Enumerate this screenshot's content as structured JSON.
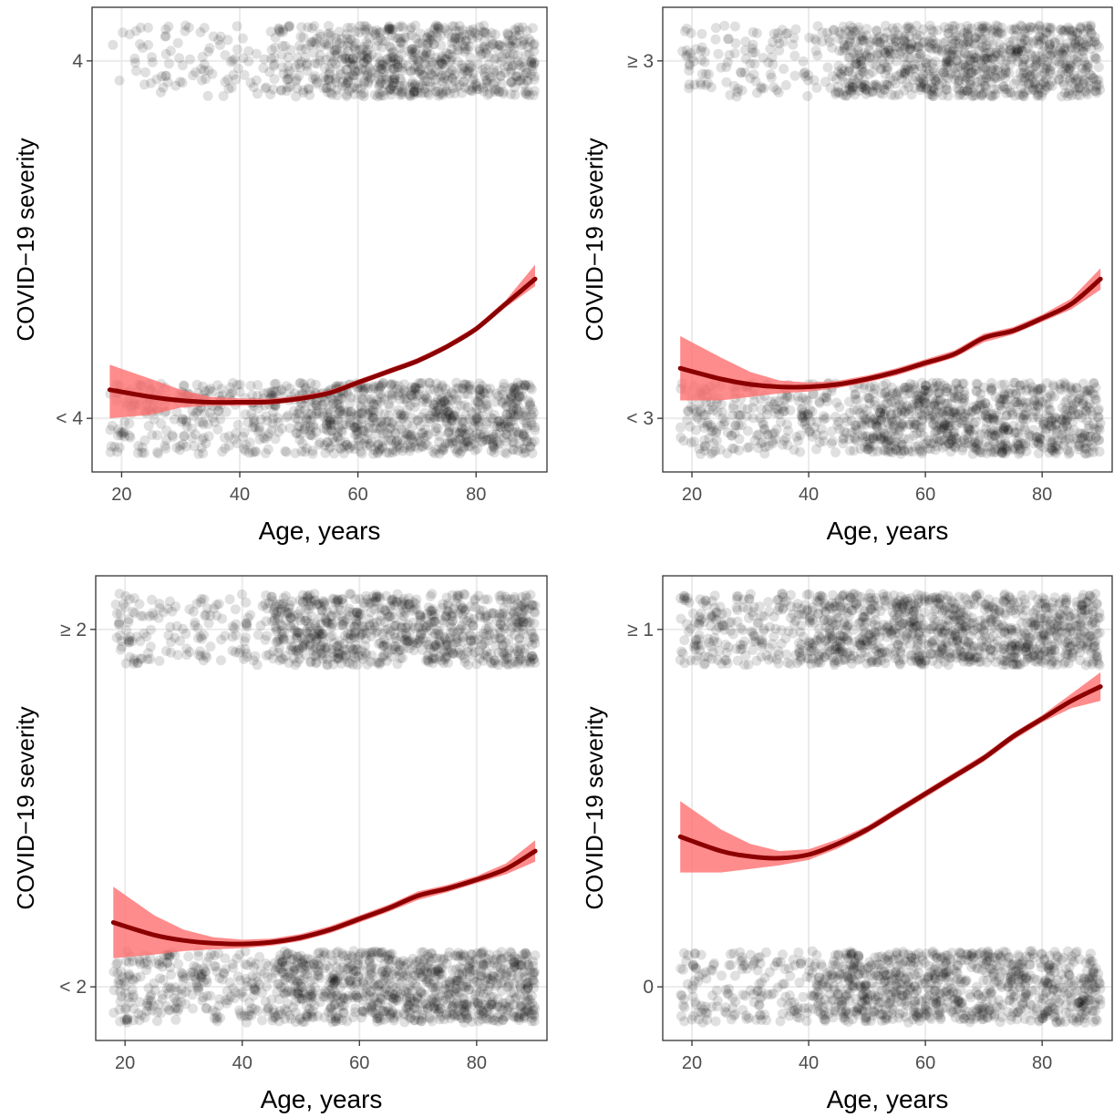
{
  "chart_data": [
    {
      "type": "scatter",
      "panel": "top-left",
      "xlabel": "Age, years",
      "ylabel": "COVID−19 severity",
      "xlim": [
        15,
        92
      ],
      "ylim": [
        -0.15,
        1.15
      ],
      "xticks": [
        20,
        40,
        60,
        80
      ],
      "yticks": [
        {
          "value": 0,
          "label": "< 4"
        },
        {
          "value": 1,
          "label": "4"
        }
      ],
      "grid": true,
      "points": {
        "color": "#000000",
        "opacity": 0.12,
        "jitter": 0.1,
        "density_at_1": "sparse below age 45, dense above",
        "density_at_0": "dense across all ages"
      },
      "fit": {
        "name": "smooth",
        "color": "#8B0000",
        "band_color": "#FF6F6F",
        "x": [
          18,
          25,
          30,
          35,
          40,
          45,
          50,
          55,
          60,
          65,
          70,
          75,
          80,
          85,
          90
        ],
        "y": [
          0.08,
          0.06,
          0.05,
          0.045,
          0.045,
          0.046,
          0.055,
          0.07,
          0.1,
          0.13,
          0.16,
          0.2,
          0.25,
          0.32,
          0.39
        ],
        "lower": [
          0.0,
          0.01,
          0.03,
          0.035,
          0.035,
          0.038,
          0.047,
          0.063,
          0.092,
          0.122,
          0.152,
          0.192,
          0.242,
          0.31,
          0.37
        ],
        "upper": [
          0.15,
          0.11,
          0.08,
          0.06,
          0.056,
          0.055,
          0.063,
          0.078,
          0.108,
          0.138,
          0.168,
          0.208,
          0.258,
          0.33,
          0.43
        ]
      }
    },
    {
      "type": "scatter",
      "panel": "top-right",
      "xlabel": "Age, years",
      "ylabel": "COVID−19 severity",
      "xlim": [
        15,
        92
      ],
      "ylim": [
        -0.15,
        1.15
      ],
      "xticks": [
        20,
        40,
        60,
        80
      ],
      "yticks": [
        {
          "value": 0,
          "label": "< 3"
        },
        {
          "value": 1,
          "label": "≥ 3"
        }
      ],
      "grid": true,
      "points": {
        "color": "#000000",
        "opacity": 0.12,
        "jitter": 0.1,
        "density_at_1": "moderate, denser above age 45",
        "density_at_0": "dense across all ages"
      },
      "fit": {
        "name": "smooth",
        "color": "#8B0000",
        "band_color": "#FF6F6F",
        "x": [
          18,
          25,
          30,
          35,
          40,
          45,
          50,
          55,
          60,
          65,
          70,
          75,
          80,
          85,
          90
        ],
        "y": [
          0.14,
          0.11,
          0.095,
          0.088,
          0.088,
          0.095,
          0.11,
          0.13,
          0.155,
          0.18,
          0.225,
          0.245,
          0.28,
          0.32,
          0.39
        ],
        "lower": [
          0.05,
          0.05,
          0.06,
          0.07,
          0.075,
          0.085,
          0.1,
          0.12,
          0.145,
          0.17,
          0.213,
          0.235,
          0.27,
          0.305,
          0.36
        ],
        "upper": [
          0.23,
          0.17,
          0.13,
          0.106,
          0.1,
          0.105,
          0.12,
          0.14,
          0.165,
          0.19,
          0.237,
          0.255,
          0.29,
          0.335,
          0.42
        ]
      }
    },
    {
      "type": "scatter",
      "panel": "bottom-left",
      "xlabel": "Age, years",
      "ylabel": "COVID−19 severity",
      "xlim": [
        15,
        92
      ],
      "ylim": [
        -0.15,
        1.15
      ],
      "xticks": [
        20,
        40,
        60,
        80
      ],
      "yticks": [
        {
          "value": 0,
          "label": "< 2"
        },
        {
          "value": 1,
          "label": "≥ 2"
        }
      ],
      "grid": true,
      "points": {
        "color": "#000000",
        "opacity": 0.12,
        "jitter": 0.1,
        "density_at_1": "moderate, denser above age 45",
        "density_at_0": "dense across all ages"
      },
      "fit": {
        "name": "smooth",
        "color": "#8B0000",
        "band_color": "#FF6F6F",
        "x": [
          18,
          25,
          30,
          35,
          40,
          45,
          50,
          55,
          60,
          65,
          70,
          75,
          80,
          85,
          90
        ],
        "y": [
          0.18,
          0.145,
          0.13,
          0.122,
          0.12,
          0.125,
          0.138,
          0.16,
          0.19,
          0.22,
          0.255,
          0.275,
          0.3,
          0.33,
          0.38
        ],
        "lower": [
          0.08,
          0.09,
          0.1,
          0.105,
          0.108,
          0.115,
          0.128,
          0.15,
          0.18,
          0.21,
          0.243,
          0.265,
          0.29,
          0.315,
          0.35
        ],
        "upper": [
          0.28,
          0.2,
          0.16,
          0.139,
          0.132,
          0.135,
          0.148,
          0.17,
          0.2,
          0.23,
          0.267,
          0.285,
          0.31,
          0.345,
          0.41
        ]
      }
    },
    {
      "type": "scatter",
      "panel": "bottom-right",
      "xlabel": "Age, years",
      "ylabel": "COVID−19 severity",
      "xlim": [
        15,
        92
      ],
      "ylim": [
        -0.15,
        1.15
      ],
      "xticks": [
        20,
        40,
        60,
        80
      ],
      "yticks": [
        {
          "value": 0,
          "label": "0"
        },
        {
          "value": 1,
          "label": "≥ 1"
        }
      ],
      "grid": true,
      "points": {
        "color": "#000000",
        "opacity": 0.12,
        "jitter": 0.1,
        "density_at_1": "dense, denser above age 40",
        "density_at_0": "dense, denser above age 40"
      },
      "fit": {
        "name": "smooth",
        "color": "#8B0000",
        "band_color": "#FF6F6F",
        "x": [
          18,
          25,
          30,
          35,
          40,
          45,
          50,
          55,
          60,
          65,
          70,
          75,
          80,
          85,
          90
        ],
        "y": [
          0.42,
          0.38,
          0.365,
          0.36,
          0.37,
          0.4,
          0.44,
          0.49,
          0.54,
          0.59,
          0.64,
          0.7,
          0.75,
          0.8,
          0.84
        ],
        "lower": [
          0.32,
          0.32,
          0.33,
          0.34,
          0.355,
          0.387,
          0.43,
          0.48,
          0.53,
          0.58,
          0.63,
          0.69,
          0.74,
          0.78,
          0.8
        ],
        "upper": [
          0.52,
          0.44,
          0.4,
          0.38,
          0.385,
          0.413,
          0.45,
          0.5,
          0.55,
          0.6,
          0.65,
          0.71,
          0.76,
          0.82,
          0.88
        ]
      }
    }
  ]
}
